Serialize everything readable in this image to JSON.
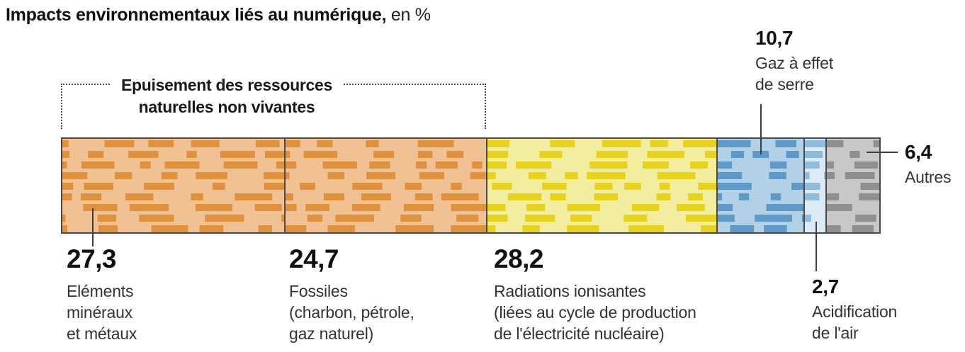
{
  "title": {
    "bold": "Impacts environnementaux liés au numérique,",
    "regular": " en %"
  },
  "bracket": {
    "label": "Epuisement des ressources\nnaturelles non vivantes"
  },
  "chart_data": {
    "type": "bar",
    "orientation": "horizontal-stacked",
    "unit": "%",
    "total": 100,
    "title": "Impacts environnementaux liés au numérique, en %",
    "categories": [
      "Eléments minéraux et métaux",
      "Fossiles (charbon, pétrole, gaz naturel)",
      "Radiations ionisantes (liées au cycle de production de l'électricité nucléaire)",
      "Gaz à effet de serre",
      "Acidification de l'air",
      "Autres"
    ],
    "values": [
      27.3,
      24.7,
      28.2,
      10.7,
      2.7,
      6.4
    ],
    "annotations": [
      {
        "text": "Epuisement des ressources naturelles non vivantes",
        "covers": [
          "Eléments minéraux et métaux",
          "Fossiles (charbon, pétrole, gaz naturel)"
        ]
      }
    ],
    "segments": [
      {
        "id": "mineraux",
        "value": 27.3,
        "value_label": "27,3",
        "label": "Eléments\nminéraux\net métaux",
        "base_color": "#EFC193",
        "dash_color": "#DF913C"
      },
      {
        "id": "fossiles",
        "value": 24.7,
        "value_label": "24,7",
        "label": "Fossiles\n(charbon, pétrole,\ngaz naturel)",
        "base_color": "#EFC193",
        "dash_color": "#DF913C"
      },
      {
        "id": "radiations",
        "value": 28.2,
        "value_label": "28,2",
        "label": "Radiations ionisantes\n(liées au cycle de production\nde l'électricité nucléaire)",
        "base_color": "#F3EDA0",
        "dash_color": "#E7D31E"
      },
      {
        "id": "ges",
        "value": 10.7,
        "value_label": "10,7",
        "label": "Gaz à effet\nde serre",
        "base_color": "#B2D1E7",
        "dash_color": "#5E9AC7"
      },
      {
        "id": "acidification",
        "value": 2.7,
        "value_label": "2,7",
        "label": "Acidification\nde l'air",
        "base_color": "#DCEAF5",
        "dash_color": "#8FBCDC"
      },
      {
        "id": "autres",
        "value": 6.4,
        "value_label": "6,4",
        "label": "Autres",
        "base_color": "#C8C8C8",
        "dash_color": "#8F8F8F"
      }
    ],
    "border_color": "#4a4a4a",
    "leader_color": "#3d3d3d"
  }
}
